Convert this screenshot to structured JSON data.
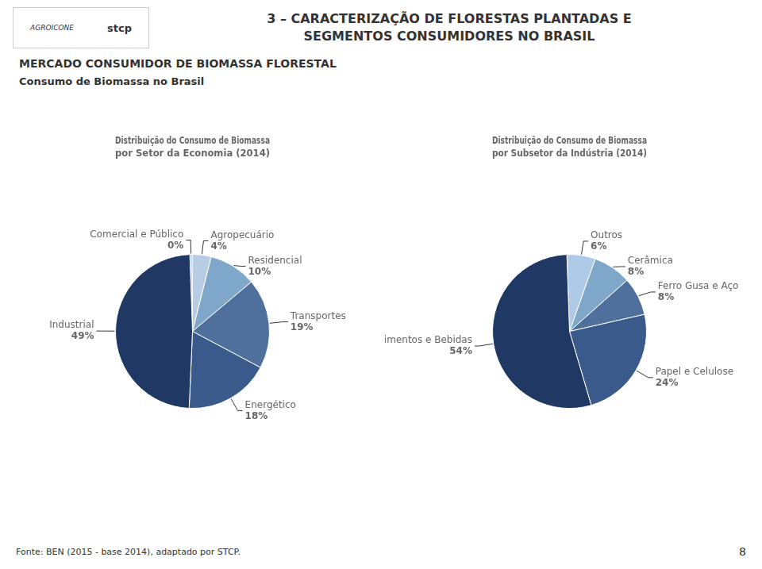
{
  "title": [
    "3 – CARACTERIZAÇÃO DE FLORESTAS PLANTADAS E",
    "SEGMENTOS CONSUMIDORES NO BRASIL"
  ],
  "subtitle": [
    "MERCADO CONSUMIDOR DE BIOMASSA FLORESTAL",
    "Consumo de Biomassa no Brasil"
  ],
  "annotations": [
    "AGROICONE",
    "stcp",
    "Fonte: BEN (2015 - base 2014), adaptado por STCP.",
    "8"
  ],
  "chart_data": [
    {
      "type": "pie",
      "title": [
        "Distribuição do Consumo de Biomassa",
        "por Setor da Economia (2014)"
      ],
      "categories": [
        "Comercial e Público",
        "Agropecuário",
        "Residencial",
        "Transportes",
        "Energético",
        "Industrial"
      ],
      "values": [
        0.5,
        4,
        10,
        19,
        18,
        49
      ],
      "value_labels": [
        "0%",
        "4%",
        "10%",
        "19%",
        "18%",
        "49%"
      ],
      "colors": [
        "#AFC9E8",
        "#B8CCE4",
        "#7FA7C9",
        "#4F6F9C",
        "#3B5A8C",
        "#1F3864"
      ],
      "data_labels": true
    },
    {
      "type": "pie",
      "title": [
        "Distribuição do Consumo de Biomassa",
        "por Subsetor da Indústria (2014)"
      ],
      "categories": [
        "Outros",
        "Cerâmica",
        "Ferro Gusa e Aço",
        "Papel e Celulose",
        "Alimentos e Bebidas"
      ],
      "values": [
        6,
        8,
        8,
        24,
        54
      ],
      "value_labels": [
        "6%",
        "8%",
        "8%",
        "24%",
        "54%"
      ],
      "colors": [
        "#AFC9E8",
        "#7FA7C9",
        "#4F6F9C",
        "#3B5A8C",
        "#1F3864"
      ],
      "data_labels": true
    }
  ]
}
